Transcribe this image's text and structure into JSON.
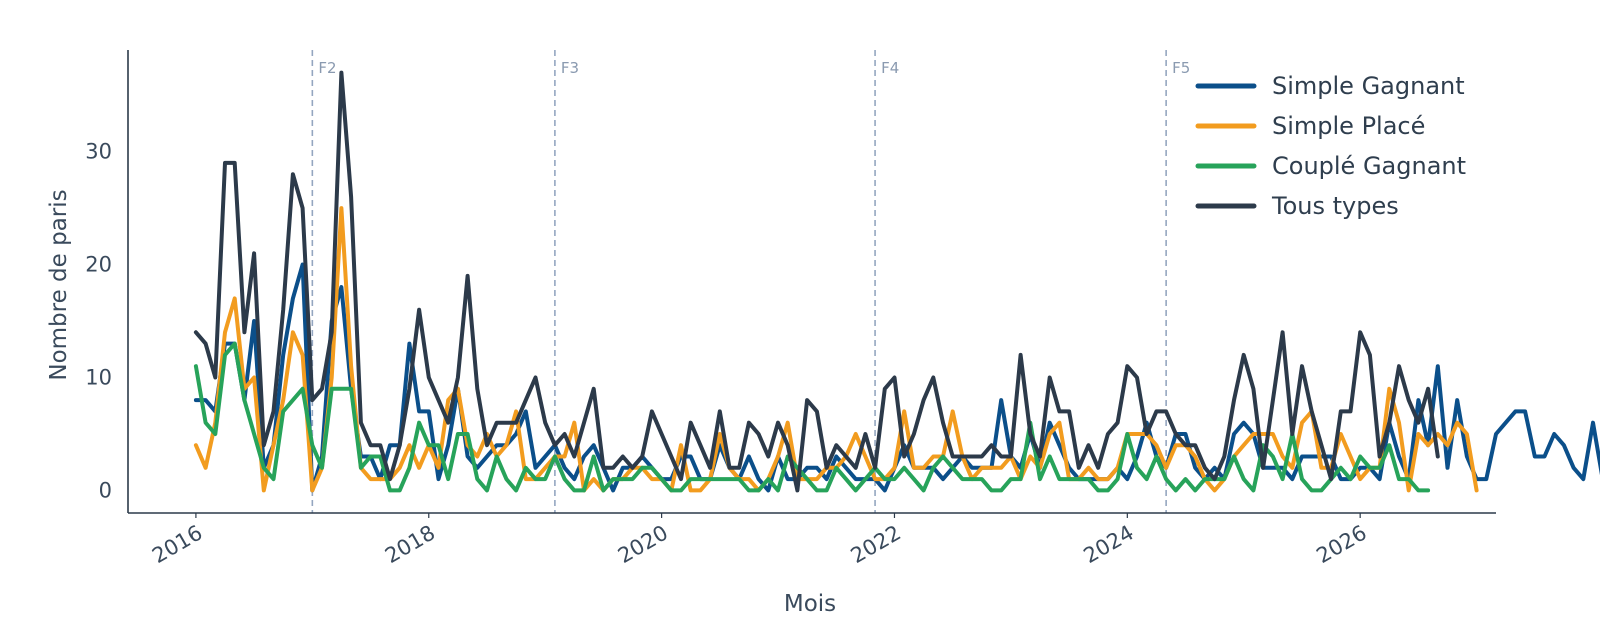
{
  "chart_data": {
    "type": "line",
    "title": "",
    "xlabel": "Mois",
    "ylabel": "Nombre de paris",
    "x_start": "2016-01",
    "xlim": [
      "2015-06",
      "2027-03"
    ],
    "ylim": [
      -2,
      39
    ],
    "y_ticks": [
      0,
      10,
      20,
      30
    ],
    "x_ticks": [
      {
        "date": "2016-01",
        "label": "2016"
      },
      {
        "date": "2018-01",
        "label": "2018"
      },
      {
        "date": "2020-01",
        "label": "2020"
      },
      {
        "date": "2022-01",
        "label": "2022"
      },
      {
        "date": "2024-01",
        "label": "2024"
      },
      {
        "date": "2026-01",
        "label": "2026"
      }
    ],
    "phases": [
      {
        "date": "2017-01",
        "label": "F2"
      },
      {
        "date": "2019-02",
        "label": "F3"
      },
      {
        "date": "2021-11",
        "label": "F4"
      },
      {
        "date": "2024-05",
        "label": "F5"
      }
    ],
    "grid": false,
    "legend_position": "top-right",
    "series": [
      {
        "name": "Simple Gagnant",
        "color": "#0b4f8a",
        "values": [
          8,
          8,
          7,
          13,
          13,
          8,
          15,
          2,
          4,
          12,
          17,
          20,
          0,
          3,
          15,
          18,
          9,
          3,
          3,
          1,
          4,
          4,
          13,
          7,
          7,
          1,
          4,
          9,
          3,
          2,
          3,
          4,
          4,
          5,
          7,
          2,
          3,
          4,
          2,
          1,
          3,
          4,
          2,
          0,
          2,
          2,
          3,
          2,
          1,
          1,
          3,
          3,
          1,
          1,
          4,
          2,
          1,
          3,
          1,
          0,
          3,
          1,
          1,
          2,
          2,
          1,
          3,
          2,
          1,
          1,
          1,
          0,
          2,
          4,
          2,
          2,
          2,
          1,
          2,
          3,
          2,
          2,
          2,
          8,
          3,
          2,
          5,
          2,
          6,
          4,
          2,
          1,
          1,
          1,
          1,
          2,
          1,
          3,
          6,
          3,
          2,
          5,
          5,
          2,
          1,
          2,
          1,
          5,
          6,
          5,
          2,
          2,
          2,
          1,
          3,
          3,
          3,
          3,
          1,
          1,
          2,
          2,
          1,
          6,
          3,
          1,
          8,
          4,
          11,
          2,
          8,
          3,
          1,
          1,
          5,
          6,
          7,
          7,
          3,
          3,
          5,
          4,
          2,
          1,
          6,
          1
        ]
      },
      {
        "name": "Simple Placé",
        "color": "#f29c1f",
        "values": [
          4,
          2,
          6,
          14,
          17,
          9,
          10,
          0,
          4,
          8,
          14,
          12,
          0,
          2,
          10,
          25,
          11,
          2,
          1,
          1,
          1,
          2,
          4,
          2,
          4,
          2,
          8,
          9,
          4,
          3,
          5,
          3,
          4,
          7,
          1,
          1,
          2,
          3,
          3,
          6,
          0,
          1,
          0,
          1,
          1,
          2,
          2,
          1,
          1,
          0,
          4,
          0,
          0,
          1,
          5,
          2,
          1,
          1,
          0,
          1,
          3,
          6,
          1,
          1,
          1,
          2,
          2,
          3,
          5,
          3,
          1,
          1,
          2,
          7,
          2,
          2,
          3,
          3,
          7,
          3,
          1,
          2,
          2,
          2,
          3,
          1,
          3,
          2,
          5,
          6,
          1,
          1,
          2,
          1,
          1,
          2,
          5,
          5,
          5,
          4,
          2,
          4,
          4,
          3,
          1,
          0,
          1,
          3,
          4,
          5,
          5,
          5,
          3,
          2,
          6,
          7,
          2,
          2,
          5,
          3,
          1,
          2,
          2,
          9,
          6,
          0,
          5,
          4,
          5,
          4,
          6,
          5,
          0
        ]
      },
      {
        "name": "Couplé Gagnant",
        "color": "#27a35a",
        "values": [
          11,
          6,
          5,
          12,
          13,
          8,
          5,
          2,
          1,
          7,
          8,
          9,
          4,
          2,
          9,
          9,
          9,
          2,
          3,
          3,
          0,
          0,
          2,
          6,
          4,
          4,
          1,
          5,
          5,
          1,
          0,
          3,
          1,
          0,
          2,
          1,
          1,
          3,
          1,
          0,
          0,
          3,
          0,
          1,
          1,
          1,
          2,
          2,
          1,
          0,
          0,
          1,
          1,
          1,
          1,
          1,
          1,
          0,
          0,
          1,
          0,
          3,
          2,
          1,
          0,
          0,
          2,
          1,
          0,
          1,
          2,
          1,
          1,
          2,
          1,
          0,
          2,
          3,
          2,
          1,
          1,
          1,
          0,
          0,
          1,
          1,
          6,
          1,
          3,
          1,
          1,
          1,
          1,
          0,
          0,
          1,
          5,
          2,
          1,
          3,
          1,
          0,
          1,
          0,
          1,
          1,
          1,
          3,
          1,
          0,
          4,
          3,
          1,
          5,
          1,
          0,
          0,
          1,
          2,
          1,
          3,
          2,
          2,
          4,
          1,
          1,
          0,
          0
        ]
      },
      {
        "name": "Tous types",
        "color": "#2c3a4a",
        "values": [
          14,
          13,
          10,
          29,
          29,
          14,
          21,
          4,
          7,
          16,
          28,
          25,
          8,
          9,
          14,
          37,
          26,
          6,
          4,
          4,
          1,
          4,
          9,
          16,
          10,
          8,
          6,
          10,
          19,
          9,
          4,
          6,
          6,
          6,
          8,
          10,
          6,
          4,
          5,
          3,
          6,
          9,
          2,
          2,
          3,
          2,
          3,
          7,
          5,
          3,
          1,
          6,
          4,
          2,
          7,
          2,
          2,
          6,
          5,
          3,
          6,
          4,
          0,
          8,
          7,
          2,
          4,
          3,
          2,
          5,
          2,
          9,
          10,
          3,
          5,
          8,
          10,
          6,
          3,
          3,
          3,
          3,
          4,
          3,
          3,
          12,
          5,
          3,
          10,
          7,
          7,
          2,
          4,
          2,
          5,
          6,
          11,
          10,
          5,
          7,
          7,
          5,
          4,
          4,
          2,
          1,
          3,
          8,
          12,
          9,
          2,
          8,
          14,
          5,
          11,
          7,
          4,
          1,
          7,
          7,
          14,
          12,
          3,
          6,
          11,
          8,
          6,
          9,
          3
        ]
      }
    ]
  }
}
